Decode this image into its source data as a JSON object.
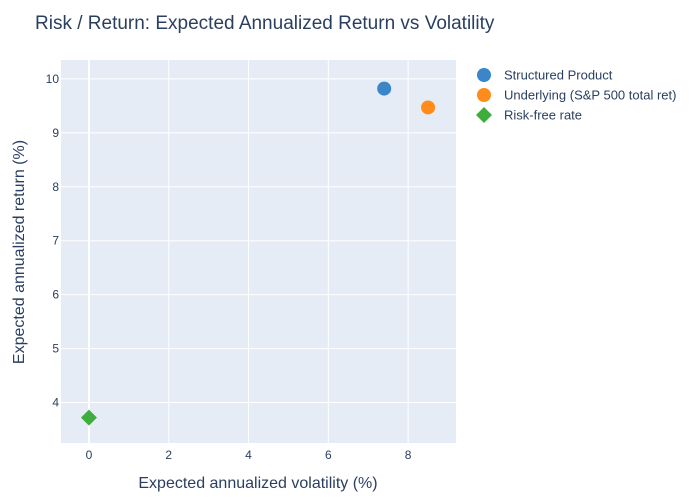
{
  "chart_data": {
    "type": "scatter",
    "title": "Risk / Return: Expected Annualized Return vs Volatility",
    "xlabel": "Expected annualized volatility (%)",
    "ylabel": "Expected annualized return (%)",
    "xlim": [
      -0.7,
      9.2
    ],
    "ylim": [
      3.25,
      10.35
    ],
    "xticks": [
      0,
      2,
      4,
      6,
      8
    ],
    "yticks": [
      4,
      5,
      6,
      7,
      8,
      9,
      10
    ],
    "grid": true,
    "legend_position": "top-right, outside plot",
    "plot_background": "#e5ecf6",
    "series": [
      {
        "name": "Structured Product",
        "color": "#3a86c8",
        "marker": "circle",
        "points": [
          {
            "x": 7.4,
            "y": 9.82
          }
        ]
      },
      {
        "name": "Underlying (S&P 500 total ret)",
        "color": "#ff8c1a",
        "marker": "circle",
        "points": [
          {
            "x": 8.5,
            "y": 9.47
          }
        ]
      },
      {
        "name": "Risk-free rate",
        "color": "#3dae3d",
        "marker": "diamond",
        "points": [
          {
            "x": 0,
            "y": 3.72
          }
        ]
      }
    ]
  }
}
